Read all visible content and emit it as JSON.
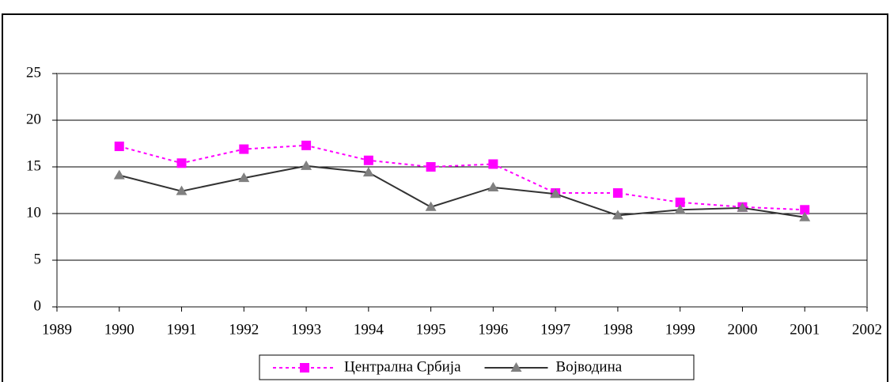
{
  "chart_data": {
    "type": "line",
    "x": [
      1990,
      1991,
      1992,
      1993,
      1994,
      1995,
      1996,
      1997,
      1998,
      1999,
      2000,
      2001
    ],
    "series": [
      {
        "name": "Централна Србија",
        "color": "#ff00ff",
        "marker": "square",
        "dash": true,
        "values": [
          17.2,
          15.4,
          16.9,
          17.3,
          15.7,
          15.0,
          15.3,
          12.2,
          12.2,
          11.2,
          10.7,
          10.4
        ]
      },
      {
        "name": "Војводина",
        "color": "#333333",
        "marker": "triangle",
        "dash": false,
        "values": [
          14.1,
          12.4,
          13.8,
          15.1,
          14.4,
          10.7,
          12.8,
          12.1,
          9.8,
          10.4,
          10.6,
          9.6
        ]
      }
    ],
    "xlim": [
      1989,
      2002
    ],
    "xticks": [
      1989,
      1990,
      1991,
      1992,
      1993,
      1994,
      1995,
      1996,
      1997,
      1998,
      1999,
      2000,
      2001,
      2002
    ],
    "ylim": [
      0,
      25
    ],
    "yticks": [
      0,
      5,
      10,
      15,
      20,
      25
    ],
    "grid": true,
    "legend": "bottom"
  }
}
